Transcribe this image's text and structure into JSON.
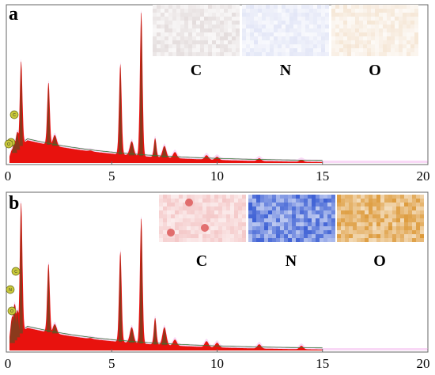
{
  "colors": {
    "spectrum_fill": "#e8120e",
    "peak_fill": "#8a3a1c",
    "background_curve": "#2e7d32",
    "frame": "#666666",
    "glow": "#f4b8ef",
    "peak_tag": "#c8c83a",
    "map_C_a": "#d9cfcf",
    "map_N_a": "#d7dcf3",
    "map_O_a": "#f1dcc4",
    "map_C_b": "#f4c8c8",
    "map_N_b": "#3c5fd4",
    "map_O_b": "#dd9a3a"
  },
  "chart_data": [
    {
      "type": "area",
      "panel_label": "a",
      "xlim": [
        0,
        20
      ],
      "x_ticks": [
        "0",
        "5",
        "10",
        "15",
        "20"
      ],
      "element_maps": [
        "C",
        "N",
        "O"
      ],
      "peak_tags": [
        "C",
        "N",
        "O"
      ],
      "series": [
        {
          "x": [
            0.2,
            0.28,
            0.39,
            0.52,
            0.7,
            0.85,
            1.25,
            1.74,
            2.0,
            2.3,
            3.3,
            3.7,
            4.0,
            5.41,
            5.95,
            6.4,
            7.06,
            7.5,
            8.0,
            9.5,
            10.0,
            12.0,
            14.0,
            15.0,
            17.0,
            20.0
          ],
          "y": [
            4,
            9,
            14,
            20,
            66,
            10,
            8,
            6,
            52,
            18,
            8,
            8,
            8,
            64,
            14,
            98,
            16,
            11,
            7,
            5,
            4,
            3,
            2,
            0,
            0,
            0
          ]
        }
      ]
    },
    {
      "type": "area",
      "panel_label": "b",
      "xlim": [
        0,
        20
      ],
      "x_ticks": [
        "0",
        "5",
        "10",
        "15",
        "20"
      ],
      "element_maps": [
        "C",
        "N",
        "O"
      ],
      "peak_tags": [
        "C",
        "N",
        "O"
      ],
      "series": [
        {
          "x": [
            0.2,
            0.28,
            0.39,
            0.52,
            0.7,
            0.85,
            1.25,
            1.74,
            2.0,
            2.3,
            3.3,
            3.7,
            4.0,
            5.41,
            5.95,
            6.4,
            7.06,
            7.5,
            8.0,
            9.5,
            10.0,
            12.0,
            14.0,
            15.0,
            17.0,
            20.0
          ],
          "y": [
            5,
            22,
            30,
            26,
            96,
            11,
            9,
            8,
            56,
            17,
            8,
            8,
            8,
            64,
            15,
            86,
            21,
            15,
            7,
            6,
            5,
            4,
            3,
            0,
            0,
            0
          ]
        }
      ]
    }
  ]
}
